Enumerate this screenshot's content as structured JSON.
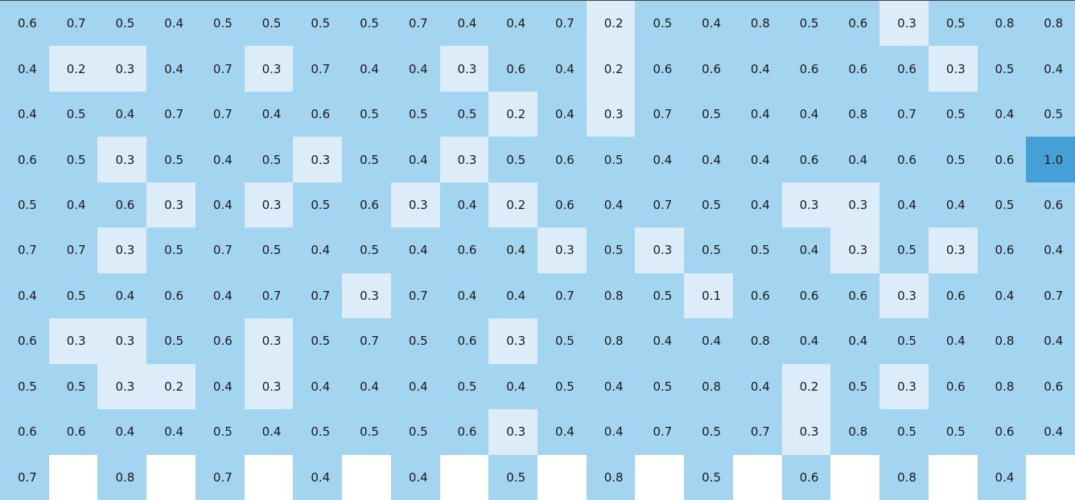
{
  "table": {
    "rows": [
      [
        "0.6",
        "0.7",
        "0.5",
        "0.4",
        "0.5",
        "0.5",
        "0.5",
        "0.5",
        "0.7",
        "0.4",
        "0.4",
        "0.7",
        "0.2",
        "0.5",
        "0.4",
        "0.8",
        "0.5",
        "0.6",
        "0.3",
        "0.5",
        "0.8",
        "0.8"
      ],
      [
        "0.4",
        "0.2",
        "0.3",
        "0.4",
        "0.7",
        "0.3",
        "0.7",
        "0.4",
        "0.4",
        "0.3",
        "0.6",
        "0.4",
        "0.2",
        "0.6",
        "0.6",
        "0.4",
        "0.6",
        "0.6",
        "0.6",
        "0.3",
        "0.5",
        "0.4"
      ],
      [
        "0.4",
        "0.5",
        "0.4",
        "0.7",
        "0.7",
        "0.4",
        "0.6",
        "0.5",
        "0.5",
        "0.5",
        "0.2",
        "0.4",
        "0.3",
        "0.7",
        "0.5",
        "0.4",
        "0.4",
        "0.8",
        "0.7",
        "0.5",
        "0.4",
        "0.5"
      ],
      [
        "0.6",
        "0.5",
        "0.3",
        "0.5",
        "0.4",
        "0.5",
        "0.3",
        "0.5",
        "0.4",
        "0.3",
        "0.5",
        "0.6",
        "0.5",
        "0.4",
        "0.4",
        "0.4",
        "0.6",
        "0.4",
        "0.6",
        "0.5",
        "0.6",
        "1.0"
      ],
      [
        "0.5",
        "0.4",
        "0.6",
        "0.3",
        "0.4",
        "0.3",
        "0.5",
        "0.6",
        "0.3",
        "0.4",
        "0.2",
        "0.6",
        "0.4",
        "0.7",
        "0.5",
        "0.4",
        "0.3",
        "0.3",
        "0.4",
        "0.4",
        "0.5",
        "0.6"
      ],
      [
        "0.7",
        "0.7",
        "0.3",
        "0.5",
        "0.7",
        "0.5",
        "0.4",
        "0.5",
        "0.4",
        "0.6",
        "0.4",
        "0.3",
        "0.5",
        "0.3",
        "0.5",
        "0.5",
        "0.4",
        "0.3",
        "0.5",
        "0.3",
        "0.6",
        "0.4"
      ],
      [
        "0.4",
        "0.5",
        "0.4",
        "0.6",
        "0.4",
        "0.7",
        "0.7",
        "0.3",
        "0.7",
        "0.4",
        "0.4",
        "0.7",
        "0.8",
        "0.5",
        "0.1",
        "0.6",
        "0.6",
        "0.6",
        "0.3",
        "0.6",
        "0.4",
        "0.7"
      ],
      [
        "0.6",
        "0.3",
        "0.3",
        "0.5",
        "0.6",
        "0.3",
        "0.5",
        "0.7",
        "0.5",
        "0.6",
        "0.3",
        "0.5",
        "0.8",
        "0.4",
        "0.4",
        "0.8",
        "0.4",
        "0.4",
        "0.5",
        "0.4",
        "0.8",
        "0.4"
      ],
      [
        "0.5",
        "0.5",
        "0.3",
        "0.2",
        "0.4",
        "0.3",
        "0.4",
        "0.4",
        "0.4",
        "0.5",
        "0.4",
        "0.5",
        "0.4",
        "0.5",
        "0.8",
        "0.4",
        "0.2",
        "0.5",
        "0.3",
        "0.6",
        "0.8",
        "0.6"
      ],
      [
        "0.6",
        "0.6",
        "0.4",
        "0.4",
        "0.5",
        "0.4",
        "0.5",
        "0.5",
        "0.5",
        "0.6",
        "0.3",
        "0.4",
        "0.4",
        "0.7",
        "0.5",
        "0.7",
        "0.3",
        "0.8",
        "0.5",
        "0.5",
        "0.6",
        "0.4"
      ],
      [
        "0.7",
        null,
        "0.8",
        null,
        "0.7",
        null,
        "0.4",
        null,
        "0.4",
        null,
        "0.5",
        null,
        "0.8",
        null,
        "0.5",
        null,
        "0.6",
        null,
        "0.8",
        null,
        "0.4",
        null
      ]
    ]
  }
}
